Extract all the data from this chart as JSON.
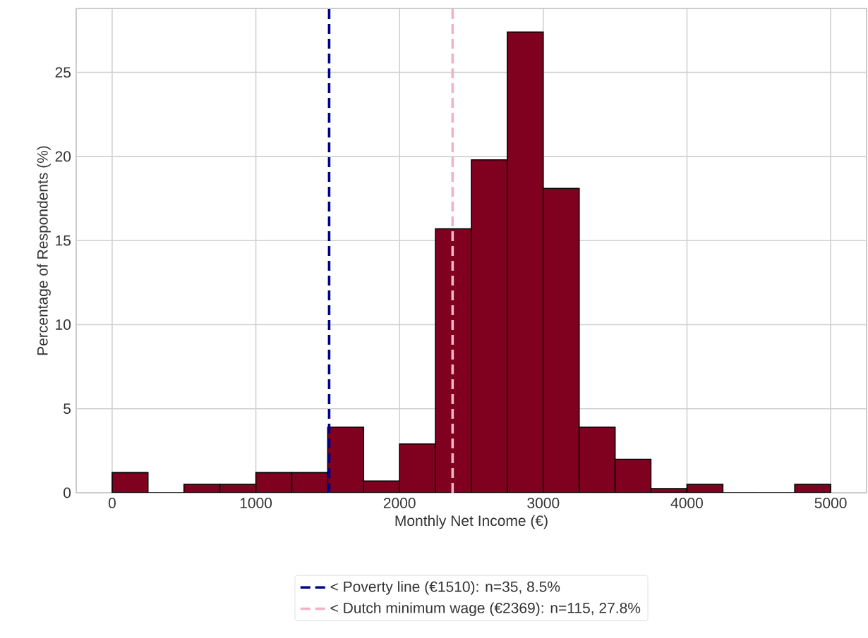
{
  "chart_data": {
    "type": "histogram",
    "xlabel": "Monthly Net Income (€)",
    "ylabel": "Percentage of Respondents (%)",
    "bins": [
      0,
      250,
      500,
      750,
      1000,
      1250,
      1500,
      1750,
      2000,
      2250,
      2500,
      2750,
      3000,
      3250,
      3500,
      3750,
      4000,
      4250,
      4500,
      4750,
      5000
    ],
    "values": [
      1.2,
      0,
      0.5,
      0.5,
      1.2,
      1.2,
      3.9,
      0.7,
      2.9,
      15.7,
      19.8,
      27.4,
      18.1,
      3.9,
      2.0,
      0.25,
      0.5,
      0,
      0,
      0.5
    ],
    "color": "#800020",
    "xlim": [
      -250,
      5250
    ],
    "ylim": [
      0,
      28.8
    ],
    "xticks": [
      0,
      1000,
      2000,
      3000,
      4000,
      5000
    ],
    "yticks": [
      0,
      5,
      10,
      15,
      20,
      25
    ],
    "grid": true,
    "legend": "bottom",
    "ref_lines": [
      {
        "axis": "x",
        "value": 1510,
        "label": "< Poverty line (€1510): n=35, 8.5%",
        "color": "#00008b",
        "line_style": "dashed"
      },
      {
        "axis": "x",
        "value": 2369,
        "label": "< Dutch minimum wage (€2369): n=115, 27.8%",
        "color": "#f0b4c4",
        "line_style": "dashed"
      }
    ]
  }
}
